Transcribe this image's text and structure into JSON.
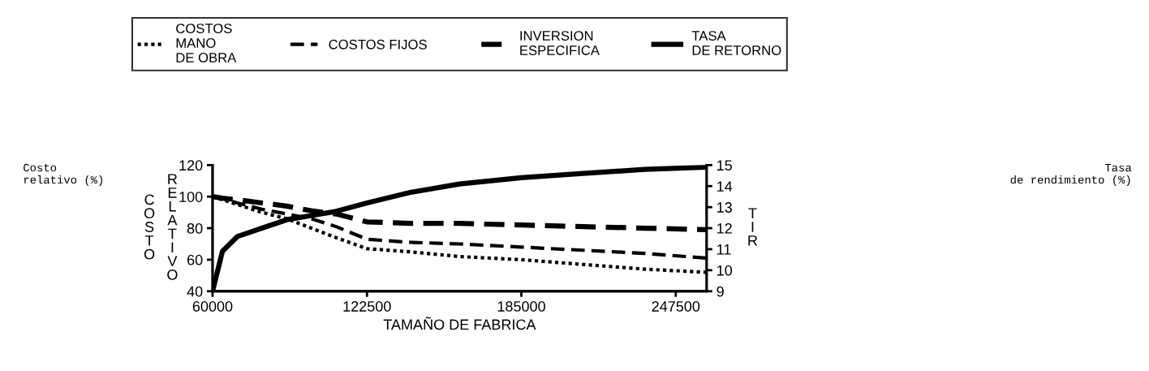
{
  "chart_data": {
    "type": "line",
    "xlabel": "TAMAÑO DE FABRICA",
    "ylabel": "COSTO RELATIVO",
    "y2label": "TIR",
    "x": [
      60000,
      64000,
      70000,
      80000,
      90000,
      100000,
      110000,
      122500,
      140000,
      160000,
      185000,
      210000,
      235000,
      260000
    ],
    "series": [
      {
        "name": "COSTOS MANO DE OBRA",
        "color": "#000000",
        "line_style": "dotted",
        "values": [
          100,
          98,
          95,
          90,
          86,
          80,
          74,
          67,
          65,
          62,
          60,
          57,
          54,
          52
        ]
      },
      {
        "name": "COSTOS FIJOS",
        "color": "#000000",
        "line_style": "dashed",
        "values": [
          100,
          99,
          96,
          92,
          89,
          86,
          81,
          73,
          71,
          70,
          68,
          66,
          64,
          61
        ]
      },
      {
        "name": "INVERSION ESPECIFICA",
        "color": "#000000",
        "line_style": "dashed",
        "values": [
          100,
          99,
          98,
          96,
          94,
          91,
          89,
          84,
          83,
          83,
          82,
          81,
          80,
          79
        ]
      },
      {
        "name": "TASA DE RETORNO",
        "color": "#000000",
        "line_style": "solid",
        "axis": "y2",
        "values": [
          9,
          10.9,
          11.6,
          12.0,
          12.4,
          12.6,
          12.8,
          13.2,
          13.7,
          14.1,
          14.4,
          14.6,
          14.8,
          14.9
        ]
      }
    ],
    "xlim": [
      60000,
      260000
    ],
    "xticks": [
      60000,
      122500,
      185000,
      247500
    ],
    "ylim": [
      40,
      120
    ],
    "yticks": [
      40,
      60,
      80,
      100,
      120
    ],
    "y2lim": [
      9,
      15
    ],
    "y2ticks": [
      9,
      10,
      11,
      12,
      13,
      14,
      15
    ],
    "grid": false,
    "legend": "top",
    "annotations": [
      "Costo relativo (%)",
      "Tasa de rendimiento (%)"
    ]
  }
}
